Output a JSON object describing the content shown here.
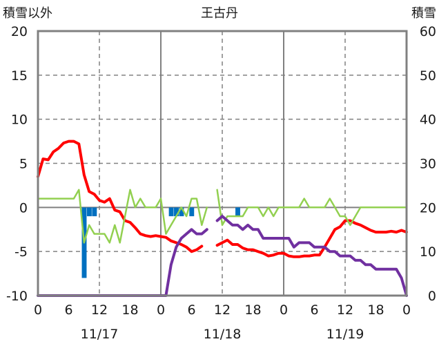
{
  "chart_data": {
    "type": "line",
    "title": "王古丹",
    "left_axis_label": "積雪以外",
    "right_axis_label": "積雪",
    "y_left": {
      "min": -10,
      "max": 20,
      "ticks": [
        "20",
        "15",
        "10",
        "5",
        "0",
        "-5",
        "-10"
      ]
    },
    "y_right": {
      "min": 0,
      "max": 60,
      "ticks": [
        "60",
        "50",
        "40",
        "30",
        "20",
        "10",
        "0"
      ]
    },
    "x": {
      "min": 0,
      "max": 72,
      "ticks": [
        "0",
        "6",
        "12",
        "18",
        "0",
        "6",
        "12",
        "18",
        "0",
        "6",
        "12",
        "18",
        "0"
      ]
    },
    "dates": [
      "11/17",
      "11/18",
      "11/19"
    ],
    "colors": {
      "temperature": "#ff0000",
      "wind": "#92d050",
      "precip": "#0070c0",
      "snow": "#7030a0",
      "frame": "#808080",
      "grid": "#808080"
    },
    "series": [
      {
        "key": "temperature",
        "axis": "left",
        "segments": [
          [
            [
              0,
              3.5
            ],
            [
              1,
              5.5
            ],
            [
              2,
              5.4
            ],
            [
              3,
              6.3
            ],
            [
              4,
              6.7
            ],
            [
              5,
              7.3
            ],
            [
              6,
              7.5
            ],
            [
              7,
              7.5
            ],
            [
              8,
              7.2
            ],
            [
              9,
              3.7
            ],
            [
              10,
              1.8
            ],
            [
              11,
              1.5
            ],
            [
              12,
              0.8
            ],
            [
              13,
              0.6
            ],
            [
              14,
              1.0
            ],
            [
              15,
              -0.3
            ],
            [
              16,
              -0.5
            ],
            [
              17,
              -1.5
            ],
            [
              18,
              -1.7
            ],
            [
              19,
              -2.3
            ],
            [
              20,
              -3.0
            ],
            [
              21,
              -3.2
            ],
            [
              22,
              -3.3
            ],
            [
              23,
              -3.2
            ],
            [
              24,
              -3.3
            ],
            [
              25,
              -3.4
            ],
            [
              26,
              -3.8
            ],
            [
              27,
              -4.0
            ],
            [
              28,
              -4.2
            ],
            [
              29,
              -4.5
            ],
            [
              30,
              -5.0
            ],
            [
              31,
              -4.8
            ],
            [
              32,
              -4.4
            ]
          ],
          [
            [
              35,
              -4.3
            ],
            [
              36,
              -4.0
            ],
            [
              37,
              -3.7
            ],
            [
              38,
              -4.2
            ],
            [
              39,
              -4.2
            ],
            [
              40,
              -4.6
            ],
            [
              41,
              -4.8
            ],
            [
              42,
              -4.8
            ],
            [
              43,
              -5.0
            ],
            [
              44,
              -5.2
            ],
            [
              45,
              -5.5
            ],
            [
              46,
              -5.4
            ],
            [
              47,
              -5.2
            ],
            [
              48,
              -5.2
            ],
            [
              49,
              -5.5
            ],
            [
              50,
              -5.6
            ],
            [
              51,
              -5.6
            ],
            [
              52,
              -5.5
            ],
            [
              53,
              -5.5
            ],
            [
              54,
              -5.4
            ],
            [
              55,
              -5.4
            ],
            [
              56,
              -4.5
            ],
            [
              57,
              -3.5
            ],
            [
              58,
              -2.5
            ],
            [
              59,
              -2.2
            ],
            [
              60,
              -1.5
            ],
            [
              61,
              -1.5
            ],
            [
              62,
              -1.8
            ],
            [
              63,
              -2.0
            ],
            [
              64,
              -2.3
            ],
            [
              65,
              -2.6
            ],
            [
              66,
              -2.8
            ],
            [
              67,
              -2.8
            ],
            [
              68,
              -2.8
            ],
            [
              69,
              -2.7
            ],
            [
              70,
              -2.8
            ],
            [
              71,
              -2.6
            ],
            [
              72,
              -2.8
            ]
          ]
        ]
      },
      {
        "key": "wind",
        "axis": "left",
        "segments": [
          [
            [
              0,
              1.0
            ],
            [
              1,
              1.0
            ],
            [
              2,
              1.0
            ],
            [
              3,
              1.0
            ],
            [
              4,
              1.0
            ],
            [
              5,
              1.0
            ],
            [
              6,
              1.0
            ],
            [
              7,
              1.0
            ],
            [
              8,
              2.0
            ],
            [
              9,
              -4.0
            ],
            [
              10,
              -2.0
            ],
            [
              11,
              -3.0
            ],
            [
              12,
              -3.0
            ],
            [
              13,
              -3.0
            ],
            [
              14,
              -4.0
            ],
            [
              15,
              -2.0
            ],
            [
              16,
              -4.0
            ],
            [
              17,
              -1.0
            ],
            [
              18,
              2.0
            ],
            [
              19,
              0.0
            ],
            [
              20,
              1.0
            ],
            [
              21,
              0.0
            ],
            [
              22,
              0.0
            ],
            [
              23,
              0.0
            ],
            [
              24,
              1.0
            ],
            [
              25,
              -3.0
            ],
            [
              26,
              -2.0
            ],
            [
              27,
              -1.0
            ],
            [
              28,
              0.0
            ],
            [
              29,
              -1.0
            ],
            [
              30,
              1.0
            ],
            [
              31,
              1.0
            ],
            [
              32,
              -2.0
            ],
            [
              33,
              0.0
            ]
          ],
          [
            [
              35,
              2.0
            ],
            [
              36,
              -2.0
            ],
            [
              37,
              -1.0
            ],
            [
              38,
              -1.0
            ],
            [
              39,
              -1.0
            ],
            [
              40,
              -1.0
            ],
            [
              41,
              0.0
            ],
            [
              42,
              0.0
            ],
            [
              43,
              0.0
            ],
            [
              44,
              -1.0
            ],
            [
              45,
              0.0
            ],
            [
              46,
              -1.0
            ],
            [
              47,
              0.0
            ],
            [
              48,
              0.0
            ],
            [
              49,
              0.0
            ],
            [
              50,
              0.0
            ],
            [
              51,
              0.0
            ],
            [
              52,
              1.0
            ],
            [
              53,
              0.0
            ],
            [
              54,
              0.0
            ],
            [
              55,
              0.0
            ],
            [
              56,
              0.0
            ],
            [
              57,
              1.0
            ],
            [
              58,
              0.0
            ],
            [
              59,
              -1.0
            ],
            [
              60,
              -1.0
            ],
            [
              61,
              -2.0
            ],
            [
              62,
              -1.0
            ],
            [
              63,
              0.0
            ],
            [
              64,
              0.0
            ],
            [
              65,
              0.0
            ],
            [
              66,
              0.0
            ],
            [
              67,
              0.0
            ],
            [
              68,
              0.0
            ],
            [
              69,
              0.0
            ],
            [
              70,
              0.0
            ],
            [
              71,
              0.0
            ],
            [
              72,
              0.0
            ]
          ]
        ]
      },
      {
        "key": "snow",
        "axis": "right",
        "segments": [
          [
            [
              0,
              0
            ],
            [
              10,
              0
            ],
            [
              20,
              0
            ],
            [
              25,
              0
            ],
            [
              26,
              7
            ],
            [
              27,
              11
            ],
            [
              28,
              13
            ],
            [
              29,
              14
            ],
            [
              30,
              15
            ],
            [
              31,
              14
            ],
            [
              32,
              14
            ],
            [
              33,
              15
            ]
          ],
          [
            [
              35,
              17
            ],
            [
              36,
              18
            ],
            [
              37,
              17
            ],
            [
              38,
              16
            ],
            [
              39,
              16
            ],
            [
              40,
              15
            ],
            [
              41,
              16
            ],
            [
              42,
              15
            ],
            [
              43,
              15
            ],
            [
              44,
              13
            ],
            [
              45,
              13
            ],
            [
              46,
              13
            ],
            [
              47,
              13
            ],
            [
              48,
              13
            ],
            [
              49,
              13
            ],
            [
              50,
              11
            ],
            [
              51,
              12
            ],
            [
              52,
              12
            ],
            [
              53,
              12
            ],
            [
              54,
              11
            ],
            [
              55,
              11
            ],
            [
              56,
              11
            ],
            [
              57,
              10
            ],
            [
              58,
              10
            ],
            [
              59,
              9
            ],
            [
              60,
              9
            ],
            [
              61,
              9
            ],
            [
              62,
              8
            ],
            [
              63,
              8
            ],
            [
              64,
              7
            ],
            [
              65,
              7
            ],
            [
              66,
              6
            ],
            [
              67,
              6
            ],
            [
              68,
              6
            ],
            [
              69,
              6
            ],
            [
              70,
              6
            ],
            [
              71,
              4
            ],
            [
              72,
              0
            ]
          ]
        ]
      }
    ],
    "bars": {
      "key": "precip",
      "axis": "left",
      "values": [
        [
          9,
          -8.0
        ],
        [
          10,
          -1.0
        ],
        [
          11,
          -1.0
        ],
        [
          26,
          -1.0
        ],
        [
          27,
          -1.0
        ],
        [
          28,
          -1.0
        ],
        [
          30,
          -1.0
        ],
        [
          39,
          -1.0
        ]
      ]
    }
  }
}
